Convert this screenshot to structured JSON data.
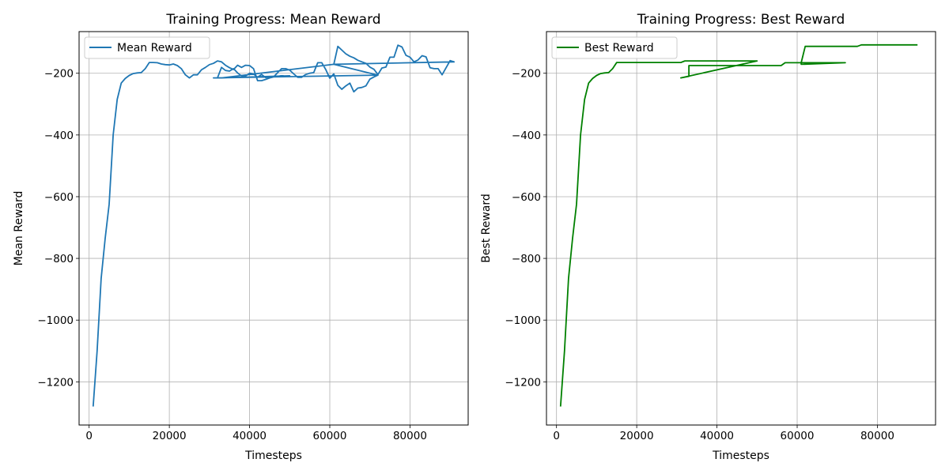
{
  "chart_data": [
    {
      "type": "line",
      "title": "Training Progress: Mean Reward",
      "xlabel": "Timesteps",
      "ylabel": "Mean Reward",
      "xlim": [
        -2500,
        94500
      ],
      "ylim": [
        -1340,
        -65
      ],
      "xticks": [
        0,
        20000,
        40000,
        60000,
        80000
      ],
      "xtick_labels": [
        "0",
        "20000",
        "40000",
        "60000",
        "80000"
      ],
      "yticks": [
        -1200,
        -1000,
        -800,
        -600,
        -400,
        -200
      ],
      "ytick_labels": [
        "−1200",
        "−1000",
        "−800",
        "−600",
        "−400",
        "−200"
      ],
      "grid": true,
      "legend_position": "top-left",
      "series": [
        {
          "name": "Mean Reward",
          "color": "#1f77b4",
          "points": [
            [
              1000,
              -1280
            ],
            [
              2000,
              -1100
            ],
            [
              3000,
              -865
            ],
            [
              4000,
              -735
            ],
            [
              5000,
              -625
            ],
            [
              6000,
              -400
            ],
            [
              7000,
              -285
            ],
            [
              8000,
              -232
            ],
            [
              9000,
              -217
            ],
            [
              10000,
              -207
            ],
            [
              11000,
              -201
            ],
            [
              12000,
              -199
            ],
            [
              13000,
              -198
            ],
            [
              14000,
              -185
            ],
            [
              15000,
              -165
            ],
            [
              16000,
              -165
            ],
            [
              17000,
              -166
            ],
            [
              18000,
              -170
            ],
            [
              19000,
              -172
            ],
            [
              20000,
              -173
            ],
            [
              21000,
              -170
            ],
            [
              22000,
              -175
            ],
            [
              23000,
              -185
            ],
            [
              24000,
              -205
            ],
            [
              25000,
              -215
            ],
            [
              26000,
              -205
            ],
            [
              27000,
              -205
            ],
            [
              28000,
              -189
            ],
            [
              29000,
              -181
            ],
            [
              30000,
              -172
            ],
            [
              31000,
              -168
            ],
            [
              32000,
              -160
            ],
            [
              33000,
              -163
            ],
            [
              34000,
              -174
            ],
            [
              35000,
              -182
            ],
            [
              36000,
              -188
            ],
            [
              37000,
              -174
            ],
            [
              38000,
              -181
            ],
            [
              39000,
              -174
            ],
            [
              40000,
              -175
            ],
            [
              41000,
              -185
            ],
            [
              42000,
              -224
            ],
            [
              43000,
              -224
            ],
            [
              44000,
              -220
            ],
            [
              45000,
              -215
            ],
            [
              46000,
              -212
            ],
            [
              47000,
              -198
            ],
            [
              48000,
              -185
            ],
            [
              49000,
              -185
            ],
            [
              50000,
              -190
            ],
            [
              51000,
              -202
            ],
            [
              52000,
              -213
            ],
            [
              53000,
              -213
            ],
            [
              54000,
              -204
            ],
            [
              55000,
              -200
            ],
            [
              56000,
              -198
            ],
            [
              57000,
              -166
            ],
            [
              58000,
              -166
            ],
            [
              59000,
              -188
            ],
            [
              60000,
              -216
            ],
            [
              61000,
              -202
            ],
            [
              62000,
              -239
            ],
            [
              63000,
              -252
            ],
            [
              64000,
              -241
            ],
            [
              65000,
              -232
            ],
            [
              66000,
              -260
            ],
            [
              67000,
              -248
            ],
            [
              68000,
              -246
            ],
            [
              69000,
              -241
            ],
            [
              70000,
              -219
            ],
            [
              71000,
              -212
            ],
            [
              72000,
              -206
            ],
            [
              31000,
              -215
            ],
            [
              32000,
              -215
            ],
            [
              33000,
              -181
            ],
            [
              34000,
              -191
            ],
            [
              35000,
              -193
            ],
            [
              36000,
              -185
            ],
            [
              37000,
              -199
            ],
            [
              38000,
              -209
            ],
            [
              39000,
              -209
            ],
            [
              40000,
              -200
            ],
            [
              41000,
              -202
            ],
            [
              42000,
              -213
            ],
            [
              43000,
              -204
            ],
            [
              44000,
              -214
            ],
            [
              45000,
              -211
            ],
            [
              46000,
              -212
            ],
            [
              47000,
              -210
            ],
            [
              48000,
              -208
            ],
            [
              49000,
              -210
            ],
            [
              50000,
              -208
            ],
            [
              33000,
              -215
            ],
            [
              61000,
              -171
            ],
            [
              62000,
              -113
            ],
            [
              63000,
              -125
            ],
            [
              64000,
              -137
            ],
            [
              65000,
              -145
            ],
            [
              66000,
              -150
            ],
            [
              67000,
              -158
            ],
            [
              68000,
              -163
            ],
            [
              69000,
              -168
            ],
            [
              70000,
              -180
            ],
            [
              71000,
              -187
            ],
            [
              72000,
              -204
            ],
            [
              73000,
              -183
            ],
            [
              74000,
              -180
            ],
            [
              75000,
              -148
            ],
            [
              76000,
              -148
            ],
            [
              77000,
              -109
            ],
            [
              78000,
              -115
            ],
            [
              79000,
              -142
            ],
            [
              80000,
              -148
            ],
            [
              81000,
              -163
            ],
            [
              82000,
              -157
            ],
            [
              83000,
              -143
            ],
            [
              84000,
              -147
            ],
            [
              85000,
              -182
            ],
            [
              86000,
              -185
            ],
            [
              87000,
              -185
            ],
            [
              88000,
              -205
            ],
            [
              89000,
              -182
            ],
            [
              90000,
              -159
            ],
            [
              91000,
              -163
            ],
            [
              61000,
              -171
            ],
            [
              72000,
              -206
            ]
          ]
        }
      ]
    },
    {
      "type": "line",
      "title": "Training Progress: Best Reward",
      "xlabel": "Timesteps",
      "ylabel": "Best Reward",
      "xlim": [
        -2500,
        94500
      ],
      "ylim": [
        -1340,
        -65
      ],
      "xticks": [
        0,
        20000,
        40000,
        60000,
        80000
      ],
      "xtick_labels": [
        "0",
        "20000",
        "40000",
        "60000",
        "80000"
      ],
      "yticks": [
        -1200,
        -1000,
        -800,
        -600,
        -400,
        -200
      ],
      "ytick_labels": [
        "−1200",
        "−1000",
        "−800",
        "−600",
        "−400",
        "−200"
      ],
      "grid": true,
      "legend_position": "top-left",
      "series": [
        {
          "name": "Best Reward",
          "color": "#008000",
          "points": [
            [
              1000,
              -1280
            ],
            [
              2000,
              -1100
            ],
            [
              3000,
              -865
            ],
            [
              4000,
              -735
            ],
            [
              5000,
              -625
            ],
            [
              6000,
              -400
            ],
            [
              7000,
              -285
            ],
            [
              8000,
              -232
            ],
            [
              9000,
              -217
            ],
            [
              10000,
              -207
            ],
            [
              11000,
              -201
            ],
            [
              12000,
              -199
            ],
            [
              13000,
              -198
            ],
            [
              14000,
              -185
            ],
            [
              15000,
              -165
            ],
            [
              31000,
              -165
            ],
            [
              32000,
              -160
            ],
            [
              50000,
              -160
            ],
            [
              31000,
              -215
            ],
            [
              33000,
              -210
            ],
            [
              33000,
              -175
            ],
            [
              56000,
              -175
            ],
            [
              57000,
              -166
            ],
            [
              61000,
              -166
            ],
            [
              61000,
              -171
            ],
            [
              72000,
              -166
            ],
            [
              61000,
              -166
            ],
            [
              62000,
              -113
            ],
            [
              75000,
              -113
            ],
            [
              76000,
              -108
            ],
            [
              90000,
              -108
            ]
          ]
        }
      ]
    }
  ]
}
